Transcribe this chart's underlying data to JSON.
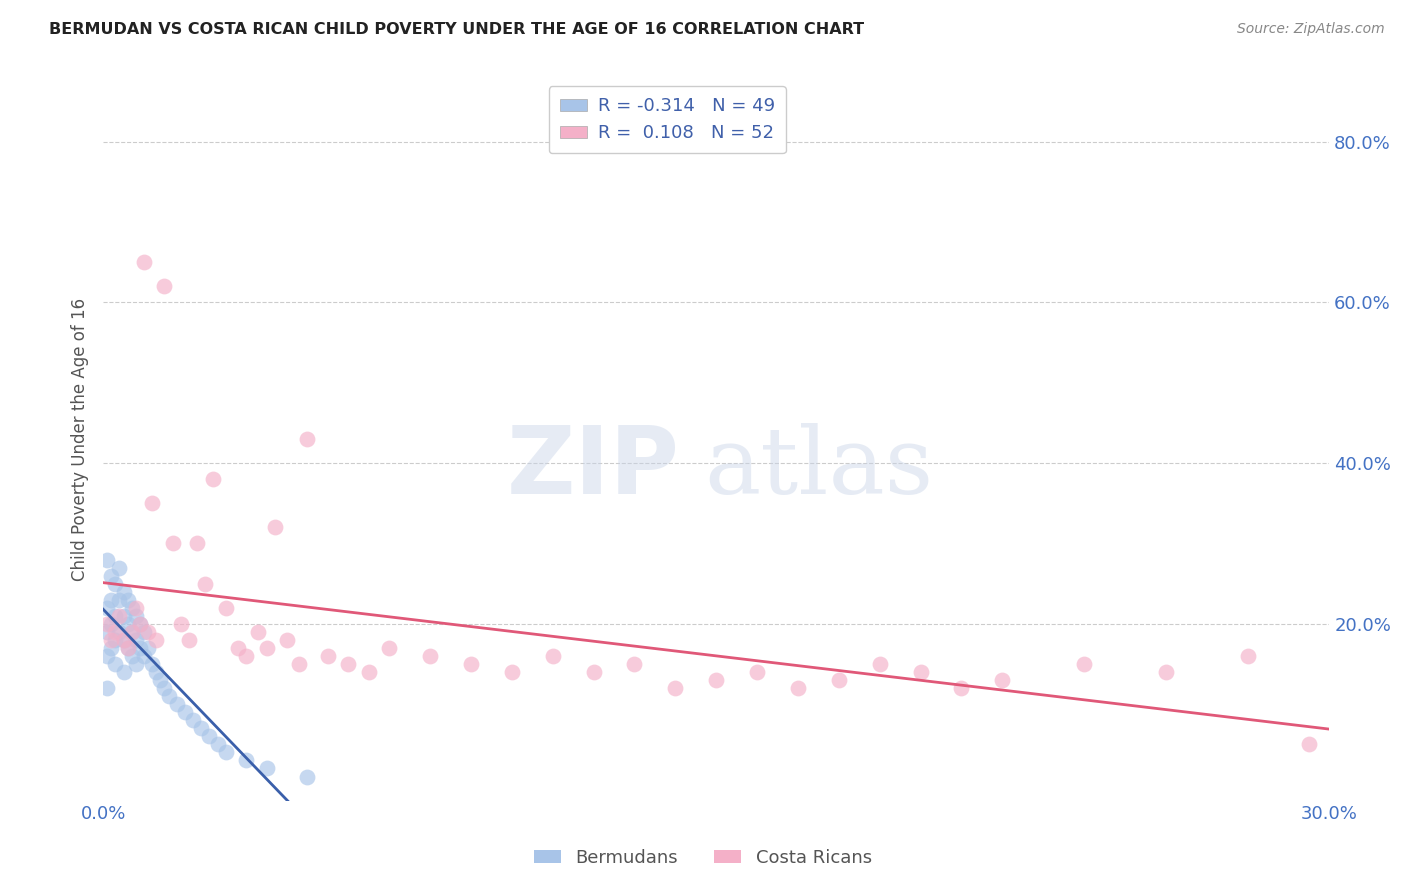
{
  "title": "BERMUDAN VS COSTA RICAN CHILD POVERTY UNDER THE AGE OF 16 CORRELATION CHART",
  "source": "Source: ZipAtlas.com",
  "ylabel": "Child Poverty Under the Age of 16",
  "bermuda_color": "#a8c4e8",
  "costa_rica_color": "#f4b0c8",
  "bermuda_line_color": "#3a5faa",
  "costa_rica_line_color": "#e05878",
  "grid_color": "#cccccc",
  "title_color": "#222222",
  "axis_label_color": "#4472c4",
  "watermark_zip": "ZIP",
  "watermark_atlas": "atlas",
  "xlim": [
    0.0,
    0.3
  ],
  "ylim": [
    -0.02,
    0.88
  ],
  "ytick_values": [
    0.8,
    0.6,
    0.4,
    0.2
  ],
  "ytick_labels": [
    "80.0%",
    "60.0%",
    "40.0%",
    "20.0%"
  ],
  "xtick_values": [
    0.0,
    0.3
  ],
  "xtick_labels": [
    "0.0%",
    "30.0%"
  ],
  "legend_label_1": "R = -0.314   N = 49",
  "legend_label_2": "R =  0.108   N = 52",
  "legend_color_1": "#a8c4e8",
  "legend_color_2": "#f4b0c8",
  "bottom_legend_1": "Bermudans",
  "bottom_legend_2": "Costa Ricans",
  "bermuda_x": [
    0.001,
    0.001,
    0.001,
    0.001,
    0.001,
    0.002,
    0.002,
    0.002,
    0.002,
    0.003,
    0.003,
    0.003,
    0.003,
    0.004,
    0.004,
    0.004,
    0.005,
    0.005,
    0.005,
    0.005,
    0.006,
    0.006,
    0.006,
    0.007,
    0.007,
    0.007,
    0.008,
    0.008,
    0.008,
    0.009,
    0.009,
    0.01,
    0.01,
    0.011,
    0.012,
    0.013,
    0.014,
    0.015,
    0.016,
    0.018,
    0.02,
    0.022,
    0.024,
    0.026,
    0.028,
    0.03,
    0.035,
    0.04,
    0.05
  ],
  "bermuda_y": [
    0.28,
    0.22,
    0.19,
    0.16,
    0.12,
    0.26,
    0.23,
    0.2,
    0.17,
    0.25,
    0.21,
    0.18,
    0.15,
    0.27,
    0.23,
    0.19,
    0.24,
    0.21,
    0.18,
    0.14,
    0.23,
    0.2,
    0.17,
    0.22,
    0.19,
    0.16,
    0.21,
    0.18,
    0.15,
    0.2,
    0.17,
    0.19,
    0.16,
    0.17,
    0.15,
    0.14,
    0.13,
    0.12,
    0.11,
    0.1,
    0.09,
    0.08,
    0.07,
    0.06,
    0.05,
    0.04,
    0.03,
    0.02,
    0.01
  ],
  "costa_rica_x": [
    0.001,
    0.002,
    0.003,
    0.004,
    0.005,
    0.006,
    0.007,
    0.008,
    0.009,
    0.01,
    0.011,
    0.012,
    0.013,
    0.015,
    0.017,
    0.019,
    0.021,
    0.023,
    0.025,
    0.027,
    0.03,
    0.033,
    0.035,
    0.038,
    0.04,
    0.042,
    0.045,
    0.048,
    0.05,
    0.055,
    0.06,
    0.065,
    0.07,
    0.08,
    0.09,
    0.1,
    0.11,
    0.12,
    0.13,
    0.14,
    0.15,
    0.16,
    0.17,
    0.18,
    0.19,
    0.2,
    0.21,
    0.22,
    0.24,
    0.26,
    0.28,
    0.295
  ],
  "costa_rica_y": [
    0.2,
    0.18,
    0.19,
    0.21,
    0.18,
    0.17,
    0.19,
    0.22,
    0.2,
    0.65,
    0.19,
    0.35,
    0.18,
    0.62,
    0.3,
    0.2,
    0.18,
    0.3,
    0.25,
    0.38,
    0.22,
    0.17,
    0.16,
    0.19,
    0.17,
    0.32,
    0.18,
    0.15,
    0.43,
    0.16,
    0.15,
    0.14,
    0.17,
    0.16,
    0.15,
    0.14,
    0.16,
    0.14,
    0.15,
    0.12,
    0.13,
    0.14,
    0.12,
    0.13,
    0.15,
    0.14,
    0.12,
    0.13,
    0.15,
    0.14,
    0.16,
    0.05
  ]
}
